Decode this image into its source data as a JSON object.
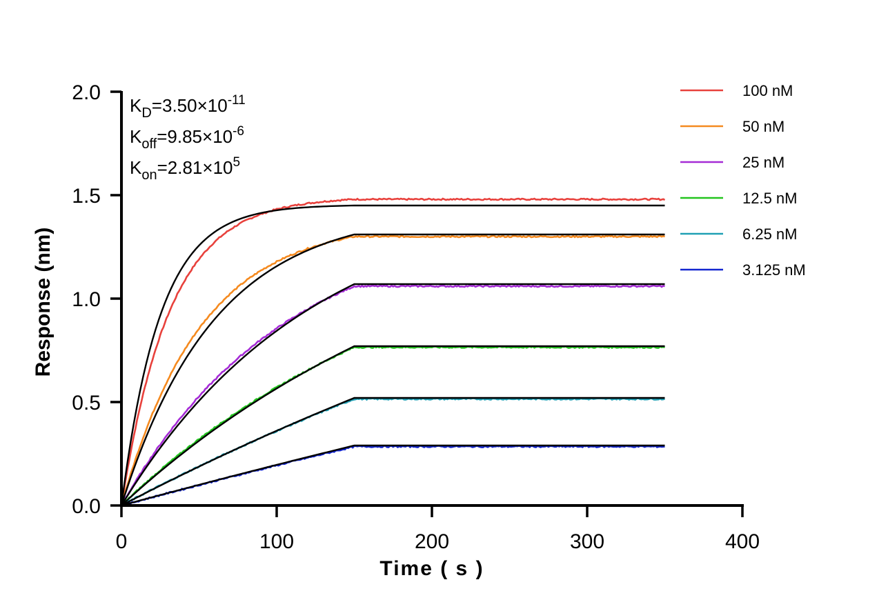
{
  "chart_data": {
    "type": "line",
    "xlabel": "Time ( s )",
    "ylabel": "Response (nm)",
    "xlim": [
      0,
      400
    ],
    "ylim": [
      0,
      2.0
    ],
    "x_ticks": [
      "0",
      "100",
      "200",
      "300",
      "400"
    ],
    "y_ticks": [
      "0.0",
      "0.5",
      "1.0",
      "1.5",
      "2.0"
    ],
    "grid": false,
    "legend_position": "top-right",
    "annotations": [
      {
        "base": "K",
        "sub": "D",
        "value": "=3.50×10",
        "exp": "-11"
      },
      {
        "base": "K",
        "sub": "off",
        "value": "=9.85×10",
        "exp": "-6"
      },
      {
        "base": "K",
        "sub": "on",
        "value": "=2.81×10",
        "exp": "5"
      }
    ],
    "association_end": 150,
    "dissociation_end": 350,
    "series": [
      {
        "name": "100 nM",
        "color": "#e8413c",
        "plateau_data": 1.48,
        "plateau_fit": 1.45,
        "k_obs": 0.032
      },
      {
        "name": "50 nM",
        "color": "#f58a1f",
        "plateau_data": 1.3,
        "plateau_fit": 1.31,
        "k_obs": 0.0195
      },
      {
        "name": "25 nM",
        "color": "#a52bd6",
        "plateau_data": 1.06,
        "plateau_fit": 1.07,
        "k_obs": 0.0095
      },
      {
        "name": "12.5 nM",
        "color": "#22c41e",
        "plateau_data": 0.765,
        "plateau_fit": 0.77,
        "k_obs": 0.005
      },
      {
        "name": "6.25 nM",
        "color": "#1f9fb4",
        "plateau_data": 0.515,
        "plateau_fit": 0.52,
        "k_obs": 0.002
      },
      {
        "name": "3.125 nM",
        "color": "#1225d0",
        "plateau_data": 0.285,
        "plateau_fit": 0.29,
        "k_obs": 0.0008
      }
    ],
    "fit_color": "#000000"
  }
}
